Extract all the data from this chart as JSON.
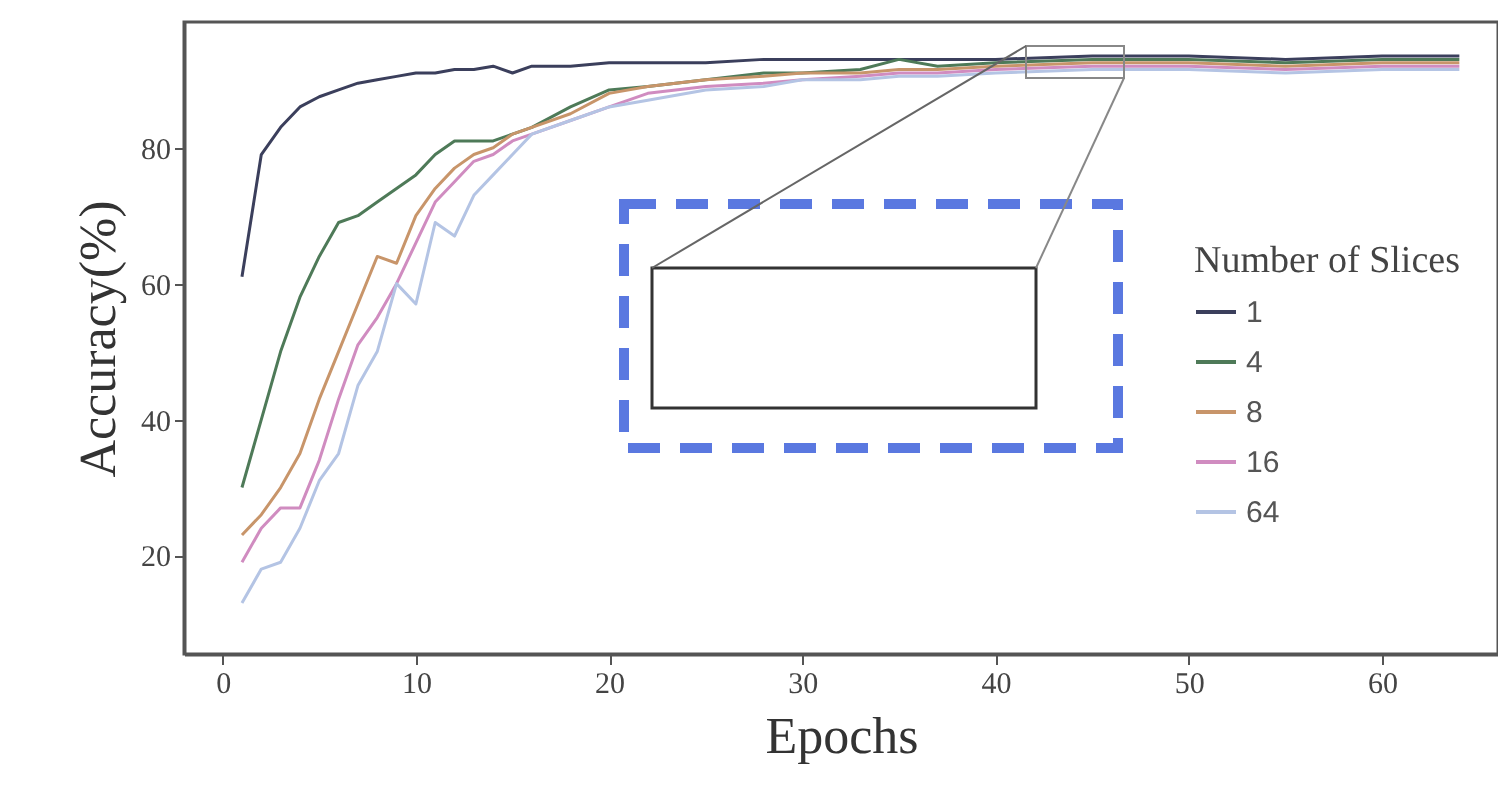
{
  "chart_data": {
    "type": "line",
    "xlabel": "Epochs",
    "ylabel": "Accuracy(%)",
    "legend_title": "Number of Slices",
    "legend": "right",
    "grid": false,
    "marker": "none",
    "line_style": "solid",
    "xlim": [
      -2,
      66
    ],
    "ylim": [
      5.5,
      98.5
    ],
    "xticks": [
      0,
      10,
      20,
      30,
      40,
      50,
      60
    ],
    "yticks": [
      20,
      40,
      60,
      80
    ],
    "x": [
      1,
      2,
      3,
      4,
      5,
      6,
      7,
      8,
      9,
      10,
      11,
      12,
      13,
      14,
      15,
      16,
      18,
      20,
      22,
      25,
      28,
      30,
      33,
      35,
      37,
      40,
      45,
      50,
      55,
      60,
      64
    ],
    "series": [
      {
        "name": "1",
        "color": "#3b3f5c",
        "values": [
          61,
          79,
          83,
          86,
          87.5,
          88.5,
          89.5,
          90,
          90.5,
          91,
          91,
          91.5,
          91.5,
          92,
          91,
          92,
          92,
          92.5,
          92.5,
          92.5,
          93,
          93,
          93,
          93,
          93,
          93,
          93.5,
          93.5,
          93,
          93.5,
          93.5
        ]
      },
      {
        "name": "4",
        "color": "#4e7a58",
        "values": [
          30,
          40,
          50,
          58,
          64,
          69,
          70,
          72,
          74,
          76,
          79,
          81,
          81,
          81,
          82,
          83,
          86,
          88.5,
          89,
          90,
          91,
          91,
          91.5,
          93,
          92,
          92.5,
          93,
          93,
          92.5,
          93,
          93
        ]
      },
      {
        "name": "8",
        "color": "#c8956a",
        "values": [
          23,
          26,
          30,
          35,
          43,
          50,
          57,
          64,
          63,
          70,
          74,
          77,
          79,
          80,
          82,
          83,
          85,
          88,
          89,
          90,
          90.5,
          91,
          91,
          91.5,
          91.5,
          92,
          92.5,
          92.5,
          92,
          92.5,
          92.5
        ]
      },
      {
        "name": "16",
        "color": "#d08cc0",
        "values": [
          19,
          24,
          27,
          27,
          34,
          43,
          51,
          55,
          60,
          66,
          72,
          75,
          78,
          79,
          81,
          82,
          84,
          86,
          88,
          89,
          89.5,
          90,
          90.5,
          91,
          91,
          91.5,
          92,
          92,
          91.5,
          92,
          92
        ]
      },
      {
        "name": "64",
        "color": "#b4c4e4",
        "values": [
          13,
          18,
          19,
          24,
          31,
          35,
          45,
          50,
          60,
          57,
          69,
          67,
          73,
          76,
          79,
          82,
          84,
          86,
          87,
          88.5,
          89,
          90,
          90,
          90.5,
          90.5,
          91,
          91.5,
          91.5,
          91,
          91.5,
          91.5
        ]
      }
    ]
  }
}
